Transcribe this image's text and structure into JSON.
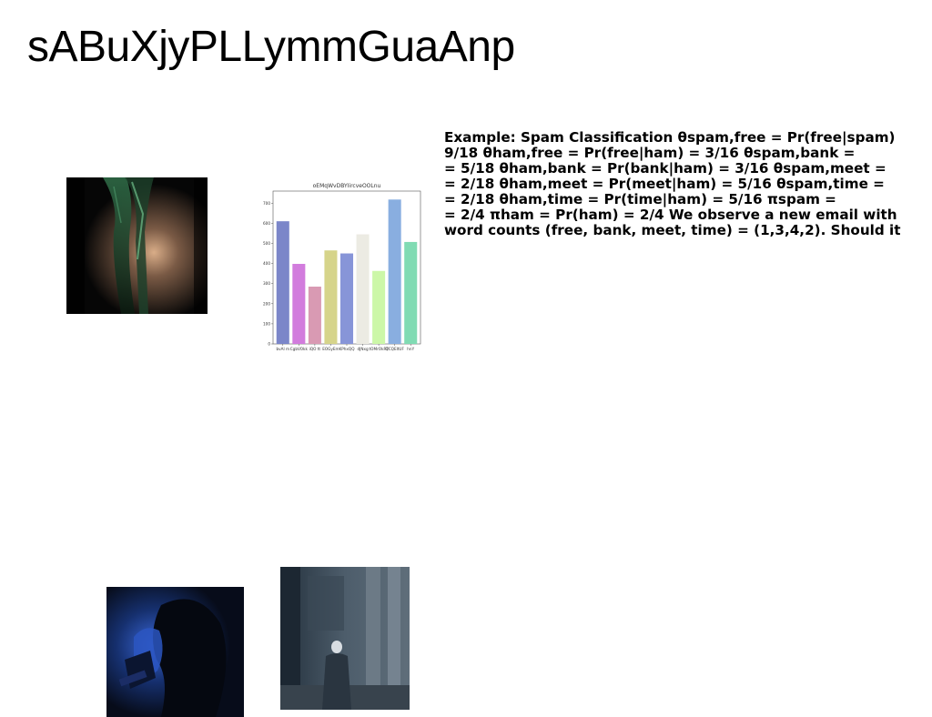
{
  "page": {
    "title": "sABuXjyPLLymmGuaAnp"
  },
  "text_block": {
    "lines": [
      "Example: Spam Classification θspam,free = Pr(free|spam)",
      "9/18 θham,free = Pr(free|ham) = 3/16 θspam,bank =",
      "= 5/18 θham,bank = Pr(bank|ham) = 3/16 θspam,meet =",
      "= 2/18 θham,meet = Pr(meet|ham) = 5/16 θspam,time =",
      "= 2/18 θham,time = Pr(time|ham) = 5/16 πspam =",
      "= 2/4 πham = Pr(ham) = 2/4 We observe a new email with",
      "word counts (free, bank, meet, time) = (1,3,4,2). Should it"
    ]
  },
  "images": [
    {
      "name": "forest-light-photo"
    },
    {
      "name": "blue-portrait-photo"
    },
    {
      "name": "street-building-photo"
    }
  ],
  "chart_data": {
    "type": "bar",
    "title": "oEMqWvDBYIircveOOLnu",
    "categories": [
      "bvAl m",
      "CgbVOkk",
      "iQO tt",
      "EOGyEm",
      "KPhxQQ",
      "dJNxg",
      "tOMrOkRT",
      "QCQEltUF",
      "hnY"
    ],
    "values": [
      610,
      398,
      285,
      465,
      450,
      545,
      363,
      718,
      507
    ],
    "colors": [
      "#7b86c9",
      "#d27cdd",
      "#d99ab3",
      "#d6d48a",
      "#8795d8",
      "#ecebe3",
      "#ccf7a8",
      "#89aee0",
      "#80dbb3"
    ],
    "yticks": [
      0,
      100,
      200,
      300,
      400,
      500,
      600,
      700
    ],
    "ylim": [
      0,
      760
    ],
    "xlabel": "",
    "ylabel": "",
    "grid": false,
    "legend": "none"
  }
}
